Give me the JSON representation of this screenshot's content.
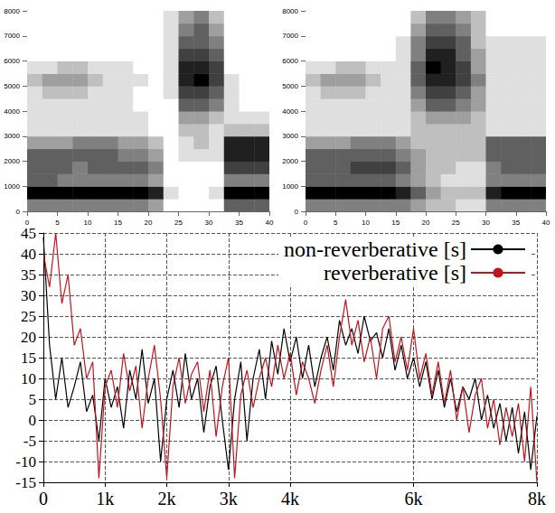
{
  "chart_data": [
    {
      "type": "heatmap",
      "grid": false,
      "xlim": [
        0,
        40
      ],
      "xticks": [
        0,
        5,
        10,
        15,
        20,
        25,
        30,
        35,
        40
      ],
      "ylim": [
        0,
        8000
      ],
      "yticks": [
        0,
        1000,
        2000,
        3000,
        4000,
        5000,
        6000,
        7000,
        8000
      ],
      "x_bins": [
        0,
        2.5,
        5,
        7.5,
        10,
        12.5,
        15,
        17.5,
        20,
        22.5,
        25,
        27.5,
        30,
        32.5,
        35,
        37.5,
        40
      ],
      "y_bins": [
        0,
        500,
        1000,
        1500,
        2000,
        2500,
        3000,
        3500,
        4000,
        4500,
        5000,
        5500,
        6000,
        6500,
        7000,
        7500,
        8000
      ],
      "cells": [
        [
          5,
          5,
          5,
          5,
          5,
          5,
          5,
          5,
          4,
          1,
          1,
          1,
          1,
          6,
          6,
          6
        ],
        [
          9,
          9,
          9,
          9,
          9,
          9,
          9,
          9,
          8,
          2,
          1,
          1,
          2,
          9,
          9,
          9
        ],
        [
          6,
          6,
          5,
          5,
          5,
          5,
          5,
          5,
          4,
          1,
          1,
          1,
          1,
          5,
          5,
          5
        ],
        [
          6,
          6,
          6,
          5,
          6,
          6,
          6,
          6,
          5,
          1,
          1,
          1,
          1,
          7,
          7,
          7
        ],
        [
          6,
          6,
          6,
          6,
          6,
          6,
          5,
          5,
          4,
          1,
          2,
          2,
          2,
          8,
          8,
          8
        ],
        [
          4,
          4,
          4,
          5,
          5,
          5,
          4,
          4,
          3,
          1,
          2,
          3,
          2,
          8,
          8,
          8
        ],
        [
          2,
          2,
          2,
          2,
          2,
          2,
          2,
          2,
          1,
          1,
          3,
          3,
          2,
          3,
          3,
          3
        ],
        [
          2,
          2,
          2,
          2,
          2,
          2,
          2,
          2,
          1,
          1,
          4,
          4,
          3,
          2,
          2,
          2
        ],
        [
          2,
          2,
          2,
          2,
          2,
          2,
          2,
          1,
          1,
          1,
          6,
          6,
          5,
          2,
          1,
          1
        ],
        [
          2,
          3,
          3,
          3,
          2,
          2,
          2,
          1,
          1,
          2,
          7,
          7,
          6,
          2,
          1,
          1
        ],
        [
          3,
          4,
          4,
          4,
          3,
          2,
          2,
          2,
          1,
          2,
          8,
          9,
          7,
          2,
          1,
          1
        ],
        [
          2,
          2,
          3,
          3,
          2,
          2,
          2,
          1,
          1,
          2,
          8,
          8,
          7,
          1,
          1,
          1
        ],
        [
          1,
          1,
          1,
          1,
          1,
          1,
          1,
          1,
          1,
          2,
          7,
          7,
          6,
          1,
          1,
          1
        ],
        [
          1,
          1,
          1,
          1,
          1,
          1,
          1,
          1,
          1,
          2,
          6,
          6,
          5,
          1,
          1,
          1
        ],
        [
          1,
          1,
          1,
          1,
          1,
          1,
          1,
          1,
          1,
          2,
          5,
          6,
          4,
          1,
          1,
          1
        ],
        [
          1,
          1,
          1,
          1,
          1,
          1,
          1,
          1,
          1,
          2,
          4,
          5,
          3,
          1,
          1,
          1
        ]
      ]
    },
    {
      "type": "heatmap",
      "grid": false,
      "xlim": [
        0,
        40
      ],
      "xticks": [
        0,
        5,
        10,
        15,
        20,
        25,
        30,
        35,
        40
      ],
      "ylim": [
        0,
        8000
      ],
      "yticks": [
        0,
        1000,
        2000,
        3000,
        4000,
        5000,
        6000,
        7000,
        8000
      ],
      "x_bins": [
        0,
        2.5,
        5,
        7.5,
        10,
        12.5,
        15,
        17.5,
        20,
        22.5,
        25,
        27.5,
        30,
        32.5,
        35,
        37.5,
        40
      ],
      "y_bins": [
        0,
        500,
        1000,
        1500,
        2000,
        2500,
        3000,
        3500,
        4000,
        4500,
        5000,
        5500,
        6000,
        6500,
        7000,
        7500,
        8000
      ],
      "cells": [
        [
          5,
          5,
          5,
          5,
          5,
          5,
          5,
          4,
          3,
          3,
          2,
          2,
          5,
          5,
          5,
          5
        ],
        [
          9,
          9,
          9,
          9,
          9,
          9,
          8,
          6,
          4,
          3,
          3,
          3,
          8,
          9,
          9,
          9
        ],
        [
          6,
          6,
          6,
          6,
          6,
          6,
          5,
          4,
          3,
          2,
          2,
          2,
          5,
          5,
          5,
          5
        ],
        [
          6,
          6,
          6,
          7,
          7,
          7,
          6,
          4,
          3,
          3,
          2,
          2,
          5,
          6,
          6,
          6
        ],
        [
          6,
          6,
          6,
          6,
          6,
          6,
          5,
          4,
          3,
          3,
          3,
          3,
          6,
          6,
          6,
          6
        ],
        [
          4,
          4,
          4,
          5,
          5,
          5,
          4,
          3,
          3,
          3,
          3,
          3,
          6,
          6,
          6,
          6
        ],
        [
          2,
          2,
          2,
          2,
          2,
          2,
          2,
          3,
          3,
          3,
          3,
          3,
          2,
          2,
          2,
          2
        ],
        [
          2,
          2,
          2,
          2,
          2,
          2,
          2,
          3,
          4,
          4,
          4,
          3,
          2,
          2,
          2,
          2
        ],
        [
          2,
          2,
          2,
          2,
          2,
          2,
          2,
          4,
          6,
          6,
          5,
          4,
          2,
          2,
          2,
          2
        ],
        [
          2,
          3,
          3,
          3,
          2,
          2,
          2,
          5,
          7,
          7,
          6,
          4,
          2,
          2,
          2,
          2
        ],
        [
          3,
          4,
          4,
          4,
          3,
          2,
          2,
          6,
          8,
          8,
          7,
          5,
          2,
          2,
          2,
          2
        ],
        [
          2,
          2,
          3,
          3,
          2,
          2,
          2,
          6,
          9,
          8,
          7,
          4,
          2,
          2,
          2,
          2
        ],
        [
          1,
          1,
          1,
          1,
          1,
          1,
          2,
          5,
          8,
          8,
          6,
          4,
          2,
          2,
          2,
          2
        ],
        [
          1,
          1,
          1,
          1,
          1,
          1,
          2,
          5,
          7,
          7,
          6,
          3,
          2,
          2,
          2,
          2
        ],
        [
          1,
          1,
          1,
          1,
          1,
          1,
          1,
          4,
          6,
          6,
          5,
          3,
          1,
          1,
          1,
          1
        ],
        [
          1,
          1,
          1,
          1,
          1,
          1,
          1,
          3,
          5,
          5,
          4,
          3,
          1,
          1,
          1,
          1
        ]
      ]
    },
    {
      "type": "line",
      "grid": true,
      "legend": "upper right",
      "xlim": [
        0,
        8000
      ],
      "xticks": [
        0,
        {
          "value": 1000,
          "label": "1k"
        },
        {
          "value": 2000,
          "label": "2k"
        },
        {
          "value": 3000,
          "label": "3k"
        },
        {
          "value": 4000,
          "label": "4k"
        },
        {
          "value": 6000,
          "label": "6k"
        },
        {
          "value": 8000,
          "label": "8k"
        }
      ],
      "ylim": [
        -15,
        45
      ],
      "yticks": [
        -15,
        -10,
        -5,
        0,
        5,
        10,
        15,
        20,
        25,
        30,
        35,
        40,
        45
      ],
      "x": [
        0,
        100,
        200,
        300,
        400,
        500,
        600,
        700,
        800,
        900,
        1000,
        1100,
        1200,
        1300,
        1400,
        1500,
        1600,
        1700,
        1800,
        1900,
        2000,
        2100,
        2200,
        2300,
        2400,
        2500,
        2600,
        2700,
        2800,
        2900,
        3000,
        3100,
        3200,
        3300,
        3400,
        3500,
        3600,
        3700,
        3800,
        3900,
        4000,
        4100,
        4200,
        4300,
        4400,
        4500,
        4600,
        4700,
        4800,
        4900,
        5000,
        5100,
        5200,
        5300,
        5400,
        5500,
        5600,
        5700,
        5800,
        5900,
        6000,
        6100,
        6200,
        6300,
        6400,
        6500,
        6600,
        6700,
        6800,
        6900,
        7000,
        7100,
        7200,
        7300,
        7400,
        7500,
        7600,
        7700,
        7800,
        7900,
        8000
      ],
      "series": [
        {
          "name": "non-reverberative [s]",
          "color": "#000000",
          "values": [
            44,
            18,
            5,
            15,
            3,
            8,
            14,
            2,
            6,
            -5,
            10,
            3,
            8,
            -2,
            12,
            5,
            17,
            4,
            10,
            -10,
            5,
            12,
            3,
            16,
            5,
            10,
            -3,
            8,
            13,
            0,
            -12,
            5,
            14,
            -5,
            10,
            17,
            5,
            19,
            11,
            22,
            14,
            20,
            10,
            18,
            8,
            15,
            20,
            12,
            24,
            18,
            22,
            16,
            25,
            19,
            21,
            15,
            22,
            12,
            18,
            10,
            15,
            8,
            14,
            5,
            12,
            3,
            10,
            2,
            8,
            5,
            10,
            0,
            6,
            -2,
            4,
            -5,
            3,
            -8,
            2,
            -12,
            1
          ]
        },
        {
          "name": "reverberative [s]",
          "color": "#c0141c",
          "values": [
            40,
            32,
            45,
            28,
            35,
            18,
            22,
            10,
            14,
            -14,
            8,
            12,
            3,
            16,
            7,
            13,
            -2,
            10,
            18,
            5,
            -14,
            8,
            15,
            4,
            11,
            14,
            2,
            12,
            -4,
            8,
            15,
            -14,
            6,
            12,
            3,
            10,
            15,
            8,
            18,
            10,
            16,
            6,
            14,
            10,
            4,
            12,
            18,
            8,
            20,
            29,
            18,
            24,
            14,
            20,
            10,
            22,
            25,
            14,
            20,
            12,
            22,
            10,
            16,
            6,
            14,
            4,
            12,
            0,
            8,
            -3,
            6,
            10,
            -2,
            5,
            -6,
            3,
            -4,
            4,
            -10,
            8,
            -15
          ]
        }
      ]
    }
  ]
}
